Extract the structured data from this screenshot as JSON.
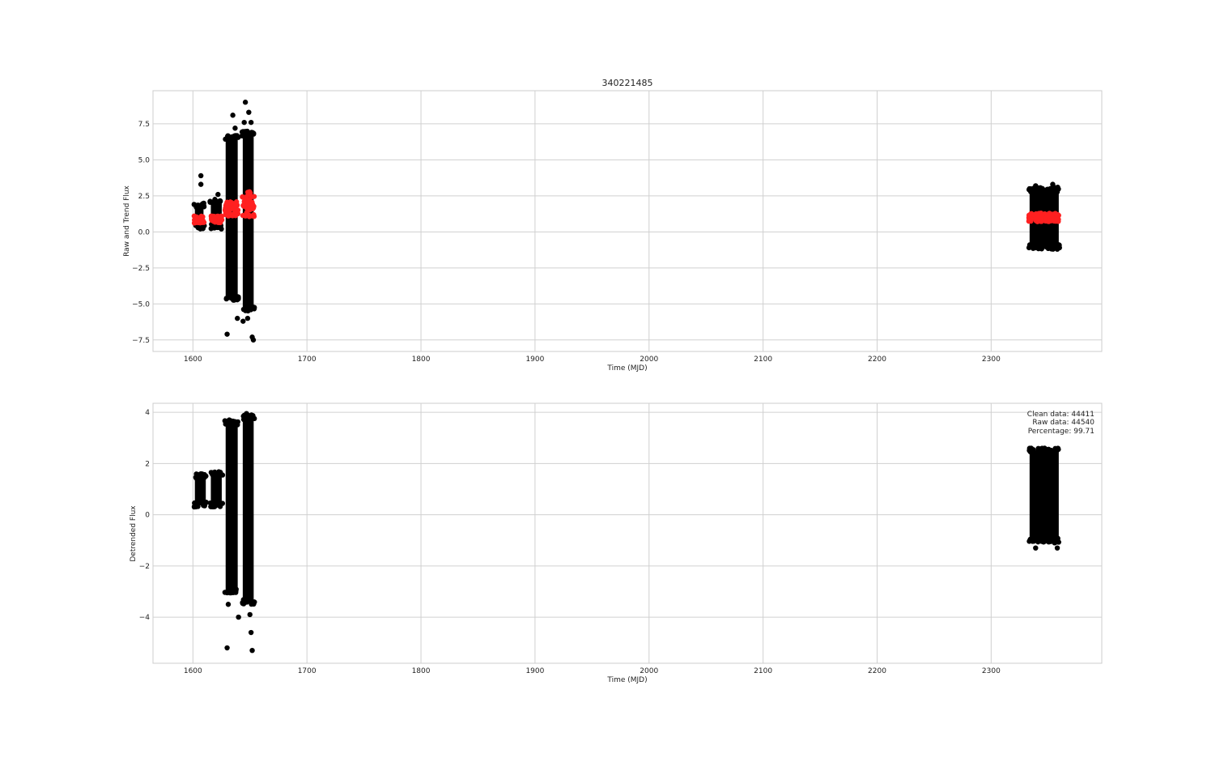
{
  "chart_data": [
    {
      "type": "scatter",
      "title": "340221485",
      "xlabel": "Time (MJD)",
      "ylabel": "Raw and Trend Flux",
      "xlim": [
        1565,
        2397
      ],
      "ylim": [
        -8.3,
        9.8
      ],
      "xticks": [
        1600,
        1700,
        1800,
        1900,
        2000,
        2100,
        2200,
        2300
      ],
      "yticks": [
        -7.5,
        -5.0,
        -2.5,
        0.0,
        2.5,
        5.0,
        7.5
      ],
      "ytick_labels": [
        "−7.5",
        "−5.0",
        "−2.5",
        "0.0",
        "2.5",
        "5.0",
        "7.5"
      ],
      "grid": true,
      "series": [
        {
          "role": "raw flux",
          "color": "#000000",
          "segments": [
            {
              "x": [
                1601,
                1610
              ],
              "y": [
                0.2,
                2.0
              ]
            },
            {
              "x": [
                1615,
                1626
              ],
              "y": [
                0.2,
                2.3
              ]
            },
            {
              "x": [
                1628,
                1640
              ],
              "y": [
                -4.8,
                6.7
              ]
            },
            {
              "x": [
                1643,
                1654
              ],
              "y": [
                -5.5,
                7.0
              ]
            },
            {
              "x": [
                2333,
                2360
              ],
              "y": [
                -1.2,
                3.1
              ]
            }
          ],
          "outliers": [
            {
              "x": 1607,
              "y": 3.9
            },
            {
              "x": 1607,
              "y": 3.3
            },
            {
              "x": 1622,
              "y": 2.6
            },
            {
              "x": 1635,
              "y": 8.1
            },
            {
              "x": 1637,
              "y": 7.2
            },
            {
              "x": 1646,
              "y": 9.0
            },
            {
              "x": 1649,
              "y": 8.3
            },
            {
              "x": 1645,
              "y": 7.6
            },
            {
              "x": 1651,
              "y": 7.6
            },
            {
              "x": 1630,
              "y": -7.1
            },
            {
              "x": 1639,
              "y": -6.0
            },
            {
              "x": 1644,
              "y": -6.2
            },
            {
              "x": 1652,
              "y": -7.3
            },
            {
              "x": 1653,
              "y": -7.5
            },
            {
              "x": 1648,
              "y": -6.0
            },
            {
              "x": 2354,
              "y": 3.3
            },
            {
              "x": 2339,
              "y": 3.2
            },
            {
              "x": 2358,
              "y": -1.2
            }
          ]
        },
        {
          "role": "trend",
          "color": "#ff2020",
          "segments": [
            {
              "x": [
                1601,
                1610
              ],
              "y": [
                0.6,
                1.1
              ]
            },
            {
              "x": [
                1616,
                1626
              ],
              "y": [
                0.6,
                1.1
              ]
            },
            {
              "x": [
                1628,
                1640
              ],
              "y": [
                1.1,
                2.1
              ]
            },
            {
              "x": [
                1643,
                1654
              ],
              "y": [
                1.0,
                2.8
              ]
            },
            {
              "x": [
                2333,
                2360
              ],
              "y": [
                0.7,
                1.3
              ]
            }
          ]
        }
      ]
    },
    {
      "type": "scatter",
      "xlabel": "Time (MJD)",
      "ylabel": "Detrended Flux",
      "xlim": [
        1565,
        2397
      ],
      "ylim": [
        -5.8,
        4.35
      ],
      "xticks": [
        1600,
        1700,
        1800,
        1900,
        2000,
        2100,
        2200,
        2300
      ],
      "yticks": [
        -4,
        -2,
        0,
        2,
        4
      ],
      "ytick_labels": [
        "−4",
        "−2",
        "0",
        "2",
        "4"
      ],
      "grid": true,
      "series": [
        {
          "role": "detrended flux",
          "color": "#000000",
          "segments": [
            {
              "x": [
                1601,
                1612
              ],
              "y": [
                0.3,
                1.6
              ]
            },
            {
              "x": [
                1615,
                1626
              ],
              "y": [
                0.3,
                1.7
              ]
            },
            {
              "x": [
                1628,
                1640
              ],
              "y": [
                -3.1,
                3.7
              ]
            },
            {
              "x": [
                1643,
                1654
              ],
              "y": [
                -3.5,
                3.9
              ]
            },
            {
              "x": [
                2333,
                2360
              ],
              "y": [
                -1.1,
                2.6
              ]
            }
          ],
          "outliers": [
            {
              "x": 1630,
              "y": -5.2
            },
            {
              "x": 1640,
              "y": -4.0
            },
            {
              "x": 1652,
              "y": -5.3
            },
            {
              "x": 1651,
              "y": -4.6
            },
            {
              "x": 1650,
              "y": -3.9
            },
            {
              "x": 1631,
              "y": -3.5
            },
            {
              "x": 2339,
              "y": -1.3
            },
            {
              "x": 2358,
              "y": -1.3
            },
            {
              "x": 1647,
              "y": 3.95
            }
          ]
        }
      ],
      "annotation": [
        "Clean data: 44411",
        " Raw data: 44540",
        " Percentage: 99.71"
      ]
    }
  ]
}
